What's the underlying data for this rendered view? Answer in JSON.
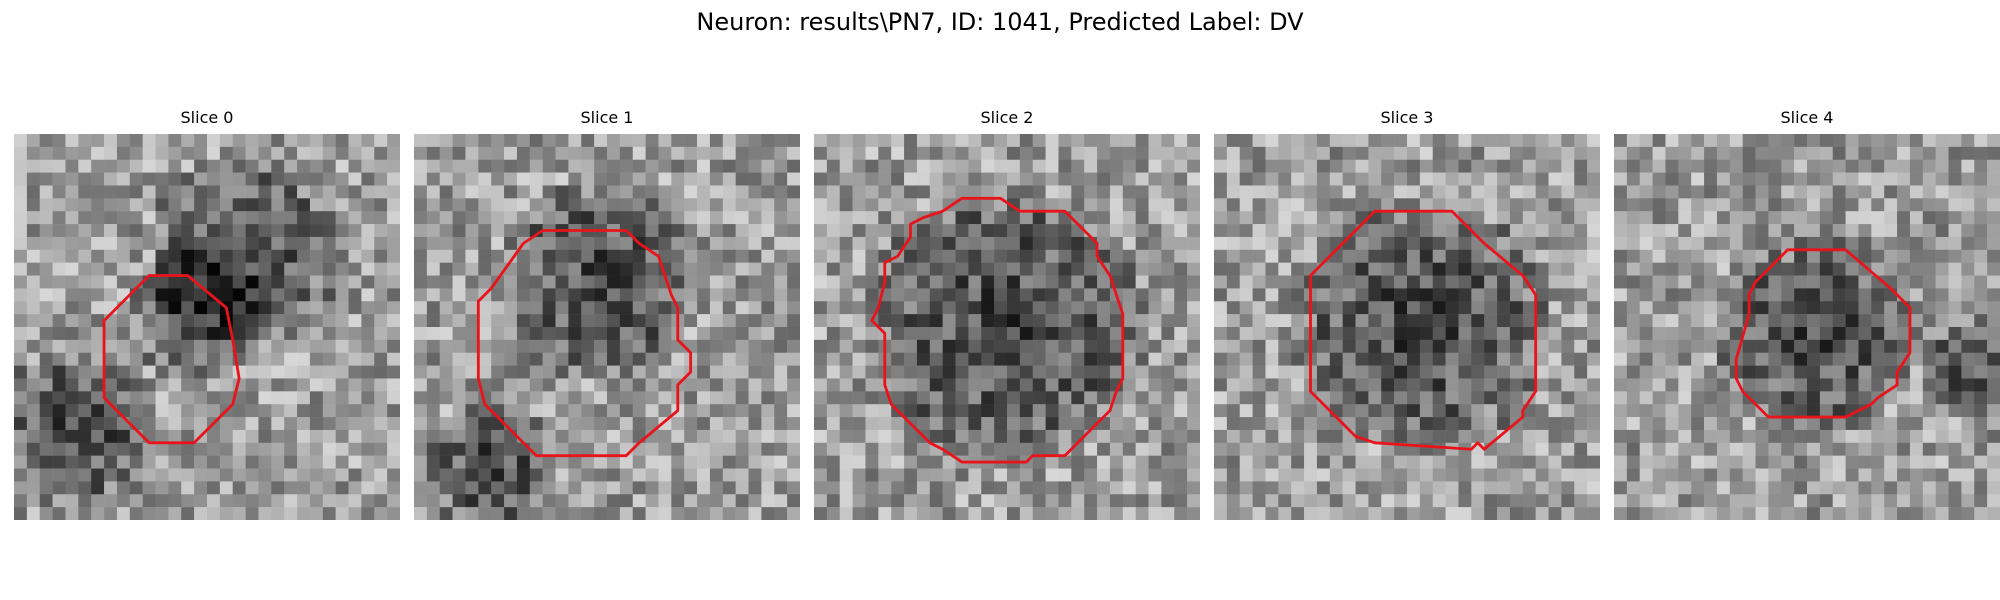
{
  "figure": {
    "title": "Neuron: results\\PN7, ID: 1041, Predicted Label: DV",
    "contour_color": "#e8141c",
    "colormap": "gray",
    "panels": [
      {
        "title": "Slice 0"
      },
      {
        "title": "Slice 1"
      },
      {
        "title": "Slice 2"
      },
      {
        "title": "Slice 3"
      },
      {
        "title": "Slice 4"
      }
    ]
  }
}
